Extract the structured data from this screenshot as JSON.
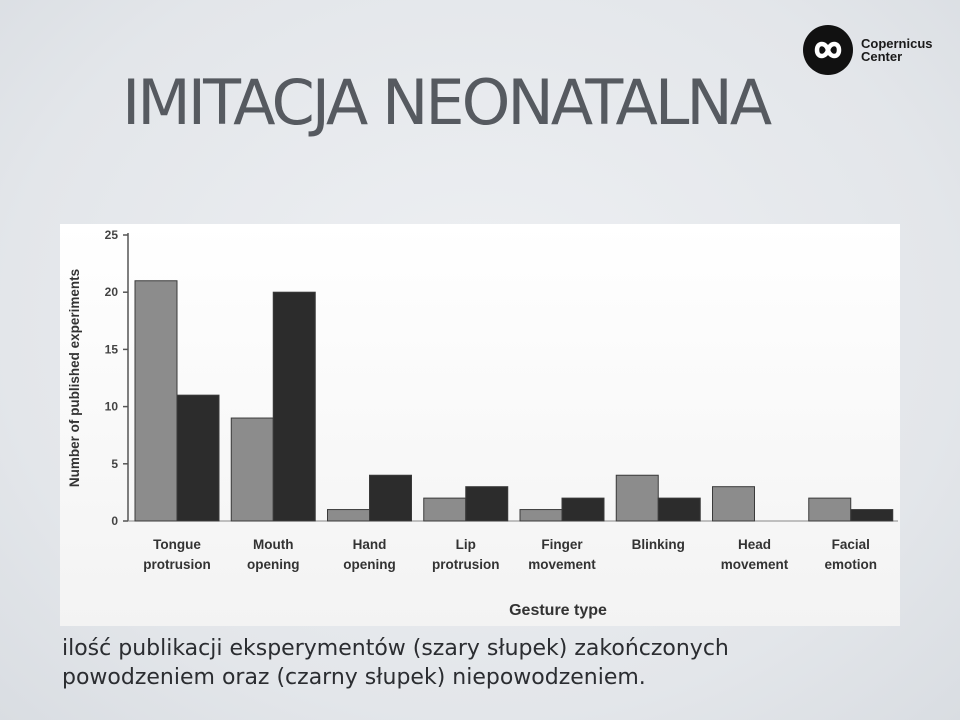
{
  "slide": {
    "title": "IMITACJA NEONATALNA",
    "caption_line1": "ilość publikacji eksperymentów (szary słupek) zakończonych",
    "caption_line2": "powodzeniem oraz (czarny słupek) niepowodzeniem."
  },
  "logo": {
    "line1": "Copernicus",
    "line2": "Center",
    "icon": "copernicus-infinity-icon"
  },
  "colors": {
    "success_bar": "#8c8c8c",
    "failure_bar": "#2c2c2c",
    "title_text": "#565a60",
    "axis": "#555555"
  },
  "chart_data": {
    "type": "bar",
    "categories": [
      [
        "Tongue",
        "protrusion"
      ],
      [
        "Mouth",
        "opening"
      ],
      [
        "Hand",
        "opening"
      ],
      [
        "Lip",
        "protrusion"
      ],
      [
        "Finger",
        "movement"
      ],
      [
        "Blinking"
      ],
      [
        "Head",
        "movement"
      ],
      [
        "Facial",
        "emotion"
      ]
    ],
    "series": [
      {
        "values": [
          21,
          9,
          1,
          2,
          1,
          4,
          3,
          2
        ],
        "color": "#8c8c8c"
      },
      {
        "values": [
          11,
          20,
          4,
          3,
          2,
          2,
          0,
          1
        ],
        "color": "#2c2c2c"
      }
    ],
    "xlabel": "Gesture type",
    "ylabel": "Number of published experiments",
    "ylim": [
      0,
      25
    ],
    "yticks": [
      0,
      5,
      10,
      15,
      20,
      25
    ],
    "grid": false
  }
}
